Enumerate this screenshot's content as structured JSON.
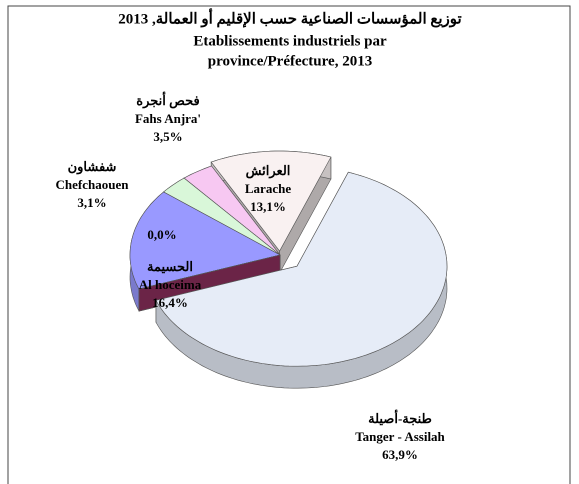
{
  "chart_data": {
    "type": "pie3d",
    "title": [
      "توزيع المؤسسات الصناعية حسب الإقليم أو العمالة, 2013",
      "Etablissements industriels par",
      "province/Préfecture, 2013"
    ],
    "categories": [
      "Tanger - Assilah",
      null,
      "Al hoceima",
      "Chefchaouen",
      "Fahs Anjra'",
      "Larache"
    ],
    "categories_ar": [
      "طنجة-أصيلة",
      null,
      "الحسيمة",
      "شفشاون",
      "فحص أنجرة",
      "العرائش"
    ],
    "values": [
      63.9,
      0.0,
      16.4,
      3.1,
      3.5,
      13.1
    ],
    "value_labels": [
      "63,9%",
      "0,0%",
      "16,4%",
      "3,1%",
      "3,5%",
      "13,1%"
    ],
    "colors": [
      "#e6ecf7",
      "#993366",
      "#9999ff",
      "#d9f7d9",
      "#f7c8f2",
      "#f9f1f1"
    ]
  }
}
